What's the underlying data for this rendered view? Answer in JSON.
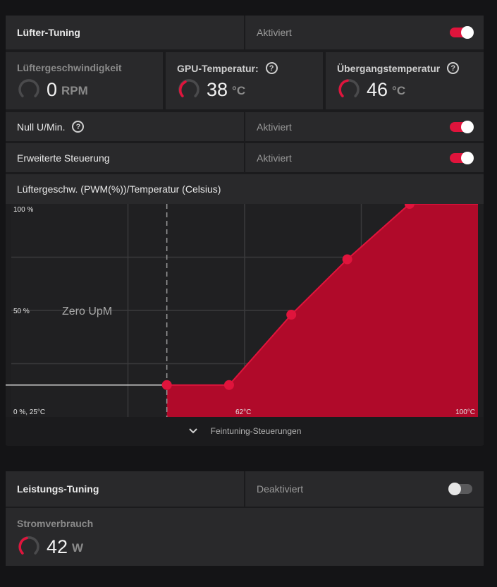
{
  "fan": {
    "title": "Lüfter-Tuning",
    "status": "Aktiviert",
    "enabled": true,
    "speed": {
      "label": "Lüftergeschwindigkeit",
      "value": "0",
      "unit": "RPM"
    },
    "gpu_temp": {
      "label": "GPU-Temperatur:",
      "value": "38",
      "unit": "°C"
    },
    "junction_temp": {
      "label": "Übergangstemperatur",
      "value": "46",
      "unit": "°C"
    },
    "zero_rpm": {
      "label": "Null U/Min.",
      "status": "Aktiviert",
      "enabled": true
    },
    "advanced": {
      "label": "Erweiterte Steuerung",
      "status": "Aktiviert",
      "enabled": true
    },
    "curve_title": "Lüftergeschw. (PWM(%))/Temperatur (Celsius)",
    "zero_label": "Zero UpM",
    "fine_tuning": "Feintuning-Steuerungen"
  },
  "power": {
    "title": "Leistungs-Tuning",
    "status": "Deaktiviert",
    "enabled": false,
    "consumption": {
      "label": "Stromverbrauch",
      "value": "42",
      "unit": "W"
    }
  },
  "colors": {
    "accent": "#e0143c",
    "curve_fill": "#b00a2a"
  },
  "chart_data": {
    "type": "area",
    "title": "Lüftergeschw. (PWM(%))/Temperatur (Celsius)",
    "xlabel": "Temperatur (Celsius)",
    "ylabel": "Lüftergeschw. (PWM(%))",
    "xlim": [
      25,
      100
    ],
    "ylim": [
      0,
      100
    ],
    "y_tick_labels": [
      "100 %",
      "50 %",
      "0 %, 25°C"
    ],
    "x_tick_labels": [
      "62°C",
      "100°C"
    ],
    "zero_rpm_threshold": 50,
    "x": [
      50,
      60,
      70,
      79,
      89
    ],
    "values": [
      15,
      15,
      48,
      74,
      100
    ],
    "grid": true
  }
}
